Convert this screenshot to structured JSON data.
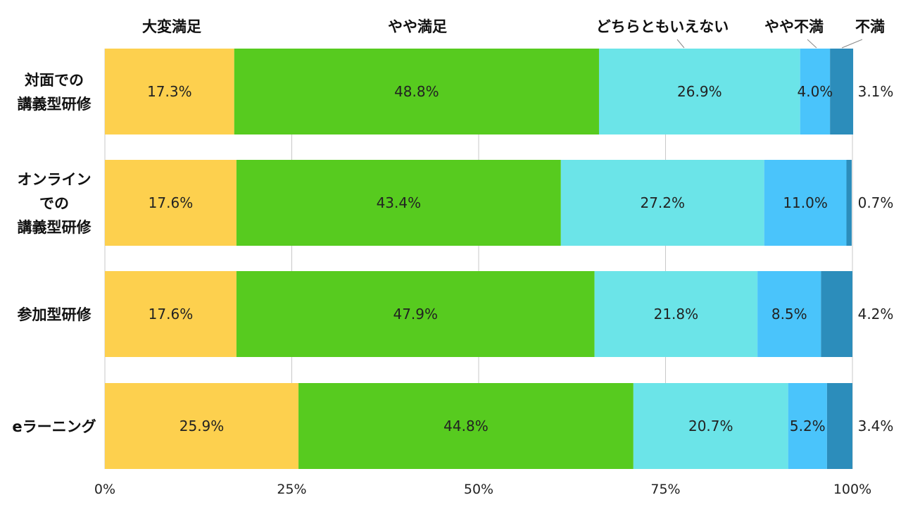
{
  "chart_data": {
    "type": "bar",
    "orientation": "horizontal",
    "stacked": true,
    "percent": true,
    "title": "",
    "xlabel": "",
    "ylabel": "",
    "xlim": [
      0,
      100
    ],
    "x_ticks": [
      "0%",
      "25%",
      "50%",
      "75%",
      "100%"
    ],
    "grid": "vertical",
    "legend_position": "top",
    "categories": [
      [
        "対面での",
        "講義型研修"
      ],
      [
        "オンライン",
        "での",
        "講義型研修"
      ],
      [
        "参加型研修"
      ],
      [
        "eラーニング"
      ]
    ],
    "series": [
      {
        "name": "大変満足",
        "color": "#FDD04E",
        "values": [
          17.3,
          17.6,
          17.6,
          25.9
        ]
      },
      {
        "name": "やや満足",
        "color": "#57CB1F",
        "values": [
          48.8,
          43.4,
          47.9,
          44.8
        ]
      },
      {
        "name": "どちらともいえない",
        "color": "#6BE4E8",
        "values": [
          26.9,
          27.2,
          21.8,
          20.7
        ]
      },
      {
        "name": "やや不満",
        "color": "#4AC4FB",
        "values": [
          4.0,
          11.0,
          8.5,
          5.2
        ]
      },
      {
        "name": "不満",
        "color": "#2C8DBB",
        "values": [
          3.1,
          0.7,
          4.2,
          3.4
        ]
      }
    ],
    "value_suffix": "%"
  }
}
